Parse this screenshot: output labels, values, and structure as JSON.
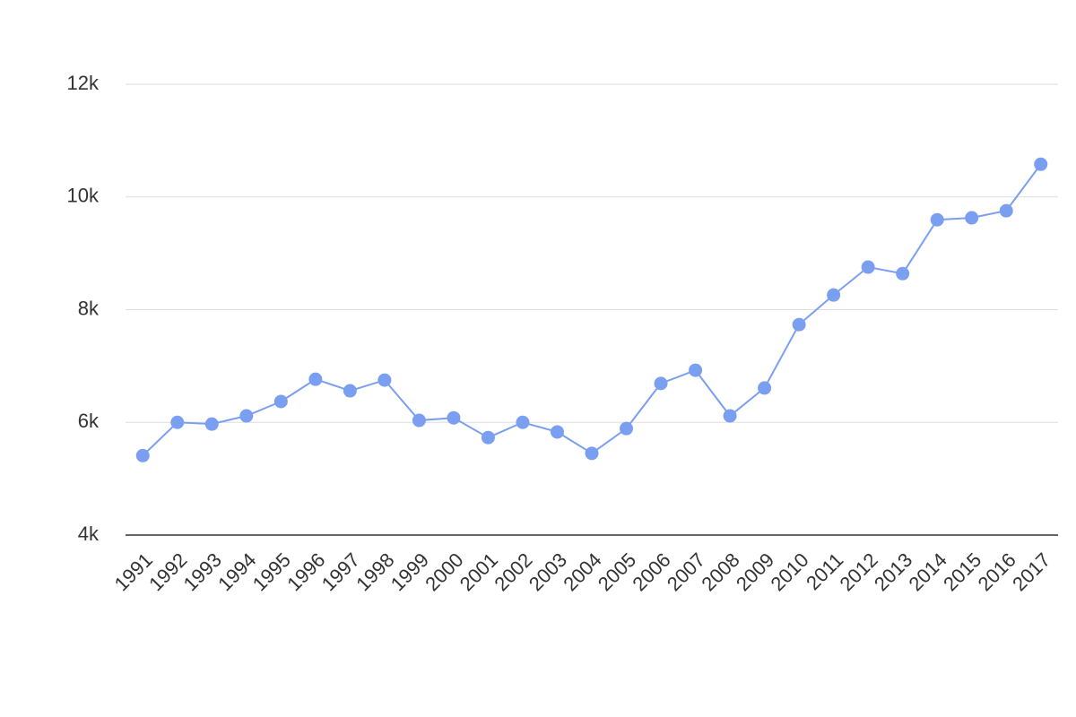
{
  "chart_data": {
    "type": "line",
    "categories": [
      "1991",
      "1992",
      "1993",
      "1994",
      "1995",
      "1996",
      "1997",
      "1998",
      "1999",
      "2000",
      "2001",
      "2002",
      "2003",
      "2004",
      "2005",
      "2006",
      "2007",
      "2008",
      "2009",
      "2010",
      "2011",
      "2012",
      "2013",
      "2014",
      "2015",
      "2016",
      "2017"
    ],
    "series": [
      {
        "name": null,
        "color": "#7b9ff0",
        "values": [
          5410,
          6000,
          5970,
          6115,
          6370,
          6765,
          6560,
          6750,
          6035,
          6080,
          5730,
          6000,
          5830,
          5450,
          5890,
          6690,
          6925,
          6115,
          6610,
          7735,
          8260,
          8755,
          8640,
          9595,
          9630,
          9755,
          10580
        ]
      }
    ],
    "ylim": [
      4000,
      12000
    ],
    "yticks": [
      {
        "value": 4000,
        "label": "4k"
      },
      {
        "value": 6000,
        "label": "6k"
      },
      {
        "value": 8000,
        "label": "8k"
      },
      {
        "value": 10000,
        "label": "10k"
      },
      {
        "value": 12000,
        "label": "12k"
      }
    ],
    "grid": true
  }
}
